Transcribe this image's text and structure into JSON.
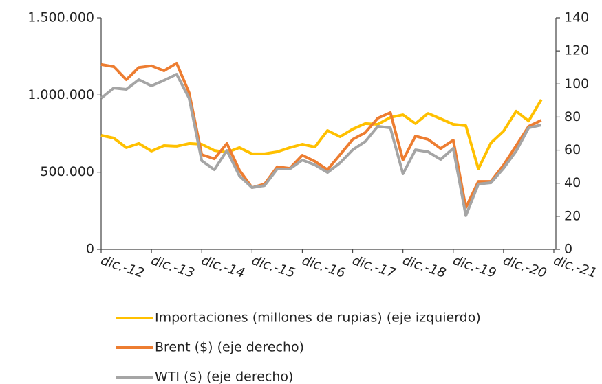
{
  "chart_data": {
    "type": "line",
    "categories": [
      "dic.-12",
      null,
      null,
      null,
      "dic.-13",
      null,
      null,
      null,
      "dic.-14",
      null,
      null,
      null,
      "dic.-15",
      null,
      null,
      null,
      "dic.-16",
      null,
      null,
      null,
      "dic.-17",
      null,
      null,
      null,
      "dic.-18",
      null,
      null,
      null,
      "dic.-19",
      null,
      null,
      null,
      "dic.-20",
      null,
      null,
      null,
      "dic.-21"
    ],
    "series": [
      {
        "name": "Importaciones (millones de rupias) (eje izquierdo)",
        "color": "#FFC000",
        "axis": "y",
        "values": [
          739000,
          721000,
          659000,
          686000,
          637000,
          672000,
          668000,
          686000,
          681000,
          641000,
          628000,
          659000,
          619000,
          619000,
          632000,
          659000,
          681000,
          663000,
          770000,
          730000,
          779000,
          815000,
          810000,
          855000,
          872000,
          815000,
          881000,
          846000,
          810000,
          801000,
          521000,
          690000,
          766000,
          895000,
          832000,
          970000,
          null
        ]
      },
      {
        "name": "Brent ($) (eje derecho)",
        "color": "#ED7D31",
        "axis": "y2",
        "values": [
          111.8,
          110.5,
          102.6,
          110,
          111,
          108,
          112.6,
          94.7,
          57.3,
          54.8,
          64,
          47.8,
          37.4,
          39.5,
          49.9,
          49,
          56.9,
          53.2,
          48.2,
          57.3,
          66.5,
          70.6,
          79.3,
          82.7,
          54,
          68.5,
          66.5,
          61,
          66,
          25.3,
          41.1,
          41.1,
          51,
          62.7,
          74.4,
          78,
          null
        ]
      },
      {
        "name": "WTI ($) (eje derecho)",
        "color": "#A5A5A5",
        "axis": "y2",
        "values": [
          91.4,
          97.6,
          96.8,
          102.6,
          98.9,
          102.2,
          105.9,
          91.4,
          53.6,
          48.2,
          59.8,
          44.4,
          37.4,
          38.6,
          48.6,
          48.6,
          54,
          51.1,
          46.5,
          52.3,
          60.2,
          65.2,
          74.4,
          73.5,
          45.7,
          60.2,
          59,
          54.4,
          61.1,
          20.4,
          39.5,
          40.3,
          49,
          59.4,
          73.5,
          75.2,
          null
        ]
      }
    ],
    "ylim": [
      0,
      1500000
    ],
    "yticks": [
      0,
      {
        "value": 500000,
        "label": "500.000"
      },
      {
        "value": 1000000,
        "label": "1.000.000"
      },
      {
        "value": 1500000,
        "label": "1.500.000"
      }
    ],
    "y2lim": [
      0,
      140
    ],
    "y2ticks": [
      0,
      20,
      40,
      60,
      80,
      100,
      120,
      140
    ],
    "grid": false,
    "legend": "bottom"
  }
}
